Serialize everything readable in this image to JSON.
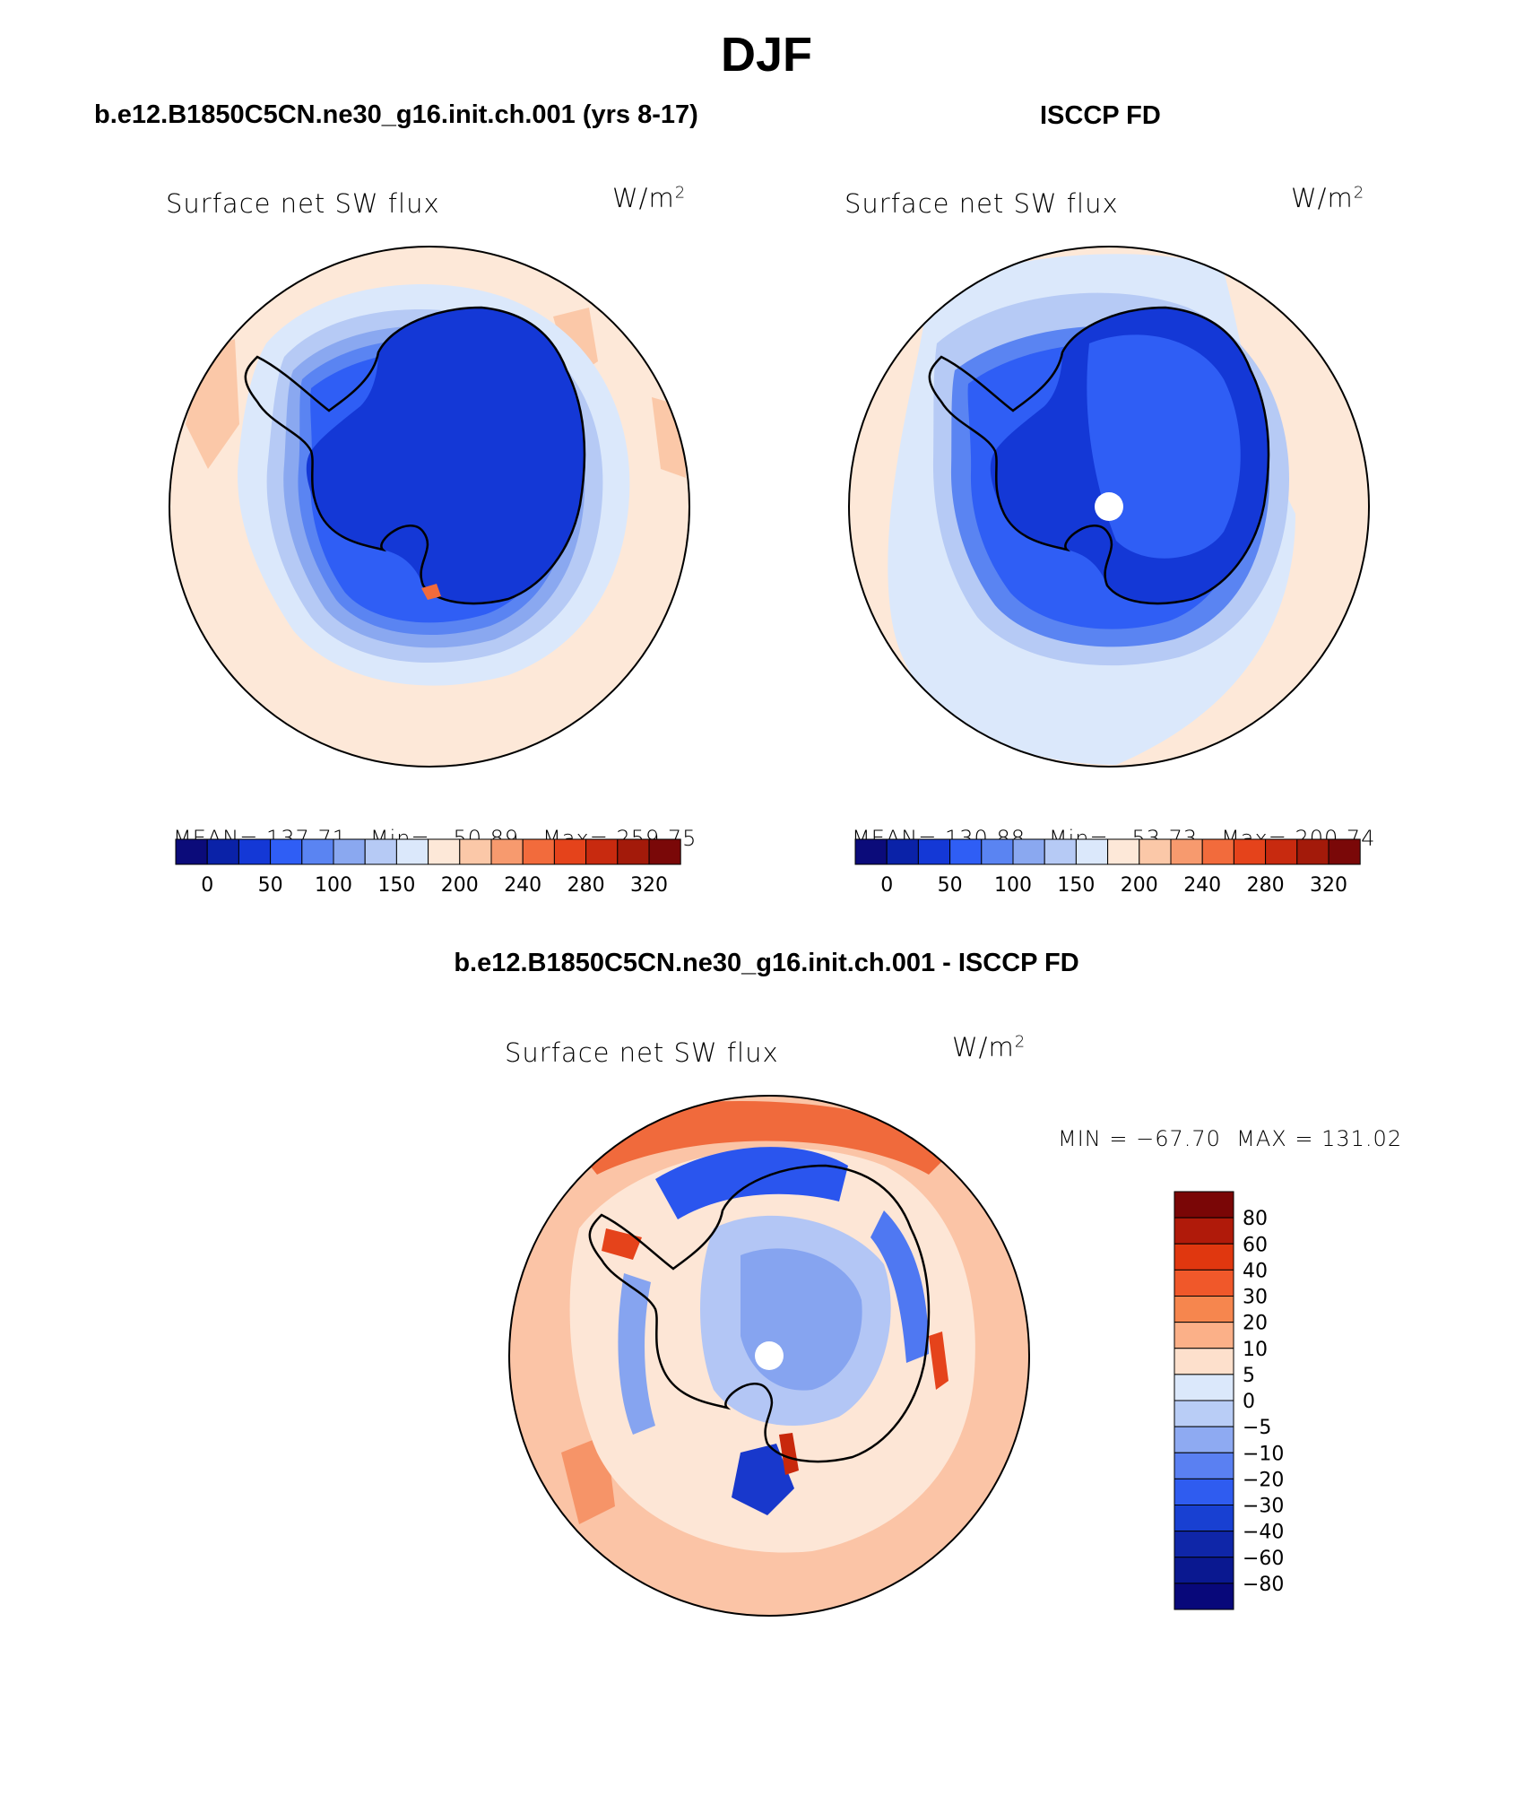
{
  "page_title": "DJF",
  "palette_abs": [
    "#0b0b7a",
    "#0a22a8",
    "#1438d6",
    "#2f5ef5",
    "#5a84f2",
    "#8aa8f0",
    "#b6caf5",
    "#dbe8fb",
    "#fde8d8",
    "#fbc8a8",
    "#f79a6e",
    "#f26b3c",
    "#e5431b",
    "#c82a0f",
    "#a31a0a",
    "#7a0808"
  ],
  "palette_diff": [
    "#0a0a80",
    "#0f22a0",
    "#1838cc",
    "#2a55ee",
    "#4f78f2",
    "#86a4f0",
    "#b3c6f5",
    "#d9e6fb",
    "#fde6d6",
    "#fbc4a6",
    "#f69468",
    "#f06a3c",
    "#e5431b",
    "#c8280c",
    "#8c0a0a"
  ],
  "panel_model": {
    "header": "b.e12.B1850C5CN.ne30_g16.init.ch.001 (yrs 8-17)",
    "variable": "Surface net SW flux",
    "units_base": "W/m",
    "units_exp": "2",
    "stats": {
      "mean_label": "MEAN=",
      "mean": "137.71",
      "min_label": "Min=",
      "min": "50.89",
      "max_label": "Max=",
      "max": "259.75"
    },
    "colorbar_ticks": [
      "0",
      "50",
      "100",
      "150",
      "200",
      "240",
      "280",
      "320"
    ]
  },
  "panel_obs": {
    "header": "ISCCP FD",
    "variable": "Surface net SW flux",
    "units_base": "W/m",
    "units_exp": "2",
    "stats": {
      "mean_label": "MEAN=",
      "mean": "130.88",
      "min_label": "Min=",
      "min": "53.73",
      "max_label": "Max=",
      "max": "200.74"
    },
    "colorbar_ticks": [
      "0",
      "50",
      "100",
      "150",
      "200",
      "240",
      "280",
      "320"
    ]
  },
  "panel_diff": {
    "header": "b.e12.B1850C5CN.ne30_g16.init.ch.001 - ISCCP FD",
    "variable": "Surface net SW flux",
    "units_base": "W/m",
    "units_exp": "2",
    "minmax": "MIN = −67.70  MAX = 131.02",
    "colorbar_labels": [
      "80",
      "60",
      "40",
      "30",
      "20",
      "10",
      "5",
      "0",
      "−5",
      "−10",
      "−20",
      "−30",
      "−40",
      "−60",
      "−80"
    ]
  }
}
